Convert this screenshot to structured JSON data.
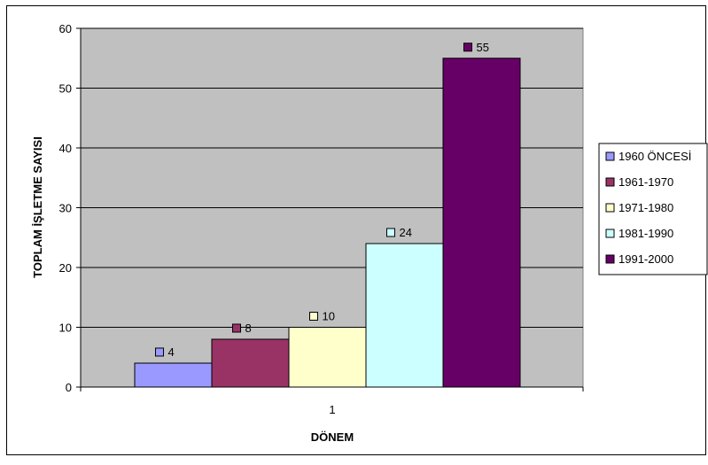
{
  "chart_data": {
    "type": "bar",
    "categories": [
      "1"
    ],
    "series": [
      {
        "name": "1960 ÖNCESİ",
        "values": [
          4
        ],
        "color": "#9999ff"
      },
      {
        "name": "1961-1970",
        "values": [
          8
        ],
        "color": "#993366"
      },
      {
        "name": "1971-1980",
        "values": [
          10
        ],
        "color": "#ffffcc"
      },
      {
        "name": "1981-1990",
        "values": [
          24
        ],
        "color": "#ccffff"
      },
      {
        "name": "1991-2000",
        "values": [
          55
        ],
        "color": "#660066"
      }
    ],
    "xlabel": "DÖNEM",
    "ylabel": "TOPLAM İŞLETME SAYISI",
    "ylim": [
      0,
      60
    ],
    "yticks": [
      "0",
      "10",
      "20",
      "30",
      "40",
      "50",
      "60"
    ],
    "grid": true,
    "plot_background": "#c0c0c0",
    "legend_position": "right",
    "data_labels": [
      "4",
      "8",
      "10",
      "24",
      "55"
    ]
  }
}
